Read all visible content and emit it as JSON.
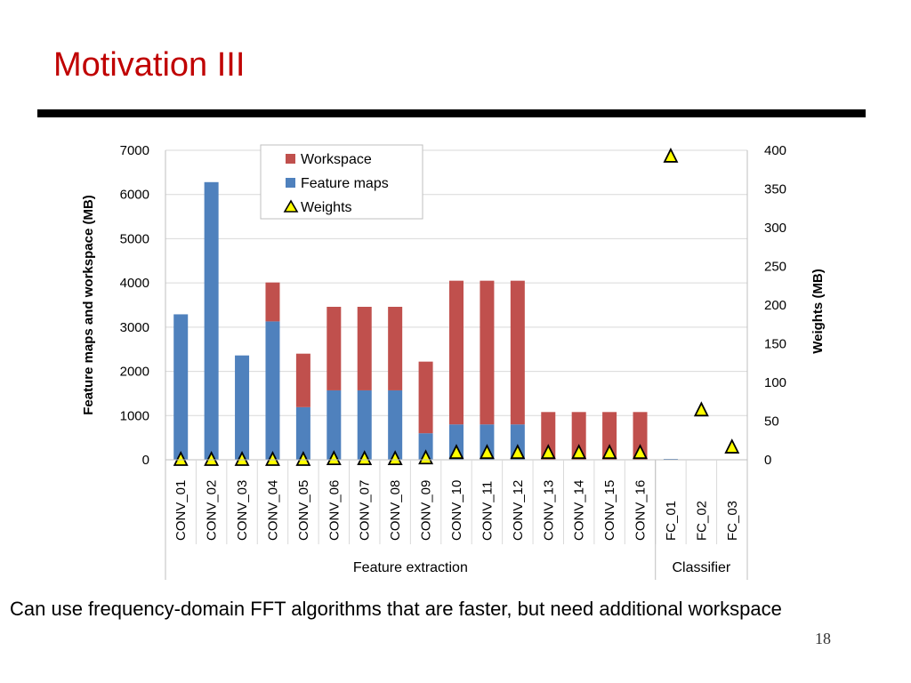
{
  "slide": {
    "title": "Motivation III",
    "caption": "Can use frequency-domain FFT algorithms that are faster, but need additional workspace",
    "page_number": "18"
  },
  "colors": {
    "title": "#c00000",
    "workspace": "#c0504d",
    "feature_maps": "#4f81bd",
    "weights_marker": "#ffff00",
    "grid": "#d9d9d9"
  },
  "chart_data": {
    "type": "bar",
    "stacked": true,
    "categories": [
      "CONV_01",
      "CONV_02",
      "CONV_03",
      "CONV_04",
      "CONV_05",
      "CONV_06",
      "CONV_07",
      "CONV_08",
      "CONV_09",
      "CONV_10",
      "CONV_11",
      "CONV_12",
      "CONV_13",
      "CONV_14",
      "CONV_15",
      "CONV_16",
      "FC_01",
      "FC_02",
      "FC_03"
    ],
    "series": [
      {
        "name": "Workspace",
        "axis": "left",
        "color": "#c0504d",
        "values": [
          0,
          0,
          0,
          880,
          1210,
          1890,
          1890,
          1890,
          1620,
          3250,
          3250,
          3250,
          1080,
          1080,
          1080,
          1080,
          0,
          0,
          0
        ]
      },
      {
        "name": "Feature maps",
        "axis": "left",
        "color": "#4f81bd",
        "values": [
          3290,
          6280,
          2360,
          3130,
          1190,
          1570,
          1570,
          1570,
          600,
          800,
          800,
          800,
          0,
          0,
          0,
          0,
          20,
          0,
          0
        ]
      },
      {
        "name": "Weights",
        "axis": "right",
        "marker": "triangle",
        "color": "#ffff00",
        "values": [
          0,
          0,
          0,
          0,
          0,
          1,
          1,
          1,
          2,
          9,
          9,
          9,
          9,
          9,
          9,
          9,
          392,
          64,
          16
        ]
      }
    ],
    "ylabel": "Feature maps and workspace (MB)",
    "y2label": "Weights (MB)",
    "ylim": [
      0,
      7000
    ],
    "yticks": [
      0,
      1000,
      2000,
      3000,
      4000,
      5000,
      6000,
      7000
    ],
    "y2lim": [
      0,
      400
    ],
    "y2ticks": [
      0,
      50,
      100,
      150,
      200,
      250,
      300,
      350,
      400
    ],
    "groups": [
      {
        "label": "Feature extraction",
        "span": 16
      },
      {
        "label": "Classifier",
        "span": 3
      }
    ],
    "grid": true,
    "legend_position": "top-left"
  }
}
